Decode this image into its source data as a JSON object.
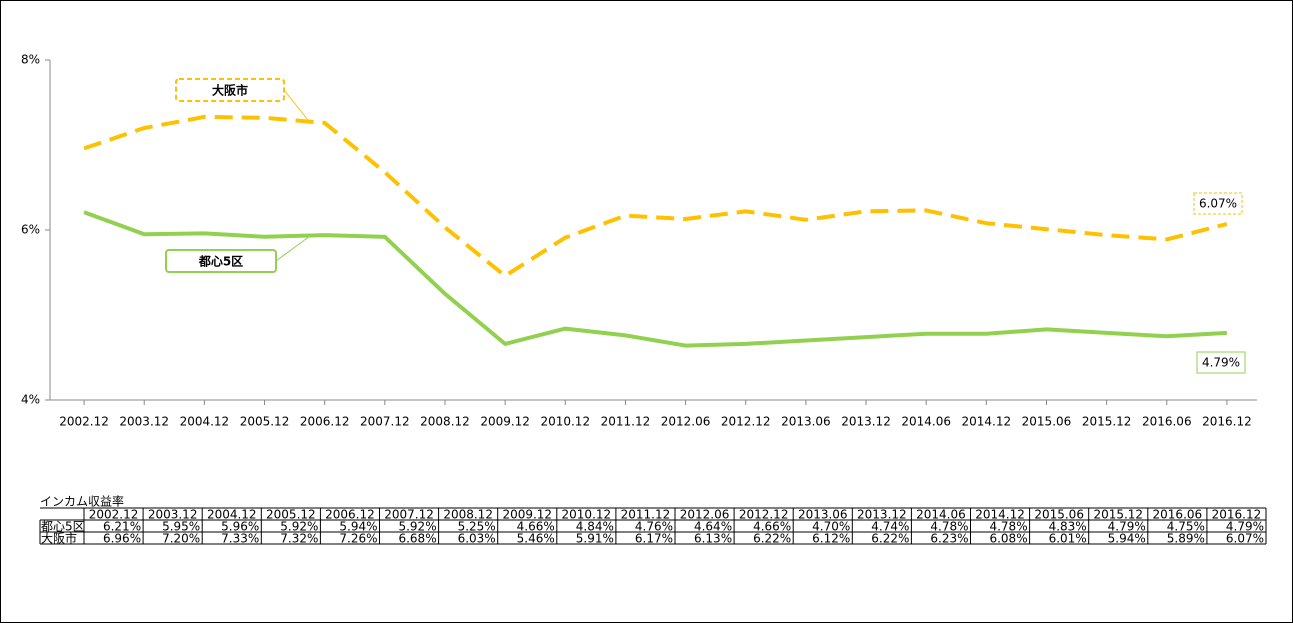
{
  "chart_data": {
    "type": "line",
    "categories": [
      "2002.12",
      "2003.12",
      "2004.12",
      "2005.12",
      "2006.12",
      "2007.12",
      "2008.12",
      "2009.12",
      "2010.12",
      "2011.12",
      "2012.06",
      "2012.12",
      "2013.06",
      "2013.12",
      "2014.06",
      "2014.12",
      "2015.06",
      "2015.12",
      "2016.06",
      "2016.12"
    ],
    "series": [
      {
        "name": "都心5区",
        "color": "#92d050",
        "dash": false,
        "values": [
          6.21,
          5.95,
          5.96,
          5.92,
          5.94,
          5.92,
          5.25,
          4.66,
          4.84,
          4.76,
          4.64,
          4.66,
          4.7,
          4.74,
          4.78,
          4.78,
          4.83,
          4.79,
          4.75,
          4.79
        ],
        "value_labels": [
          "6.21%",
          "5.95%",
          "5.96%",
          "5.92%",
          "5.94%",
          "5.92%",
          "5.25%",
          "4.66%",
          "4.84%",
          "4.76%",
          "4.64%",
          "4.66%",
          "4.70%",
          "4.74%",
          "4.78%",
          "4.78%",
          "4.83%",
          "4.79%",
          "4.75%",
          "4.79%"
        ]
      },
      {
        "name": "大阪市",
        "color": "#ffc000",
        "dash": true,
        "values": [
          6.96,
          7.2,
          7.33,
          7.32,
          7.26,
          6.68,
          6.03,
          5.46,
          5.91,
          6.17,
          6.13,
          6.22,
          6.12,
          6.22,
          6.23,
          6.08,
          6.01,
          5.94,
          5.89,
          6.07
        ],
        "value_labels": [
          "6.96%",
          "7.20%",
          "7.33%",
          "7.32%",
          "7.26%",
          "6.68%",
          "6.03%",
          "5.46%",
          "5.91%",
          "6.17%",
          "6.13%",
          "6.22%",
          "6.12%",
          "6.22%",
          "6.23%",
          "6.08%",
          "6.01%",
          "5.94%",
          "5.89%",
          "6.07%"
        ]
      }
    ],
    "ylim": [
      4,
      8
    ],
    "yticks": [
      {
        "value": 4,
        "label": "4%"
      },
      {
        "value": 6,
        "label": "6%"
      },
      {
        "value": 8,
        "label": "8%"
      }
    ],
    "grid": false,
    "table_title": "インカム収益率"
  }
}
